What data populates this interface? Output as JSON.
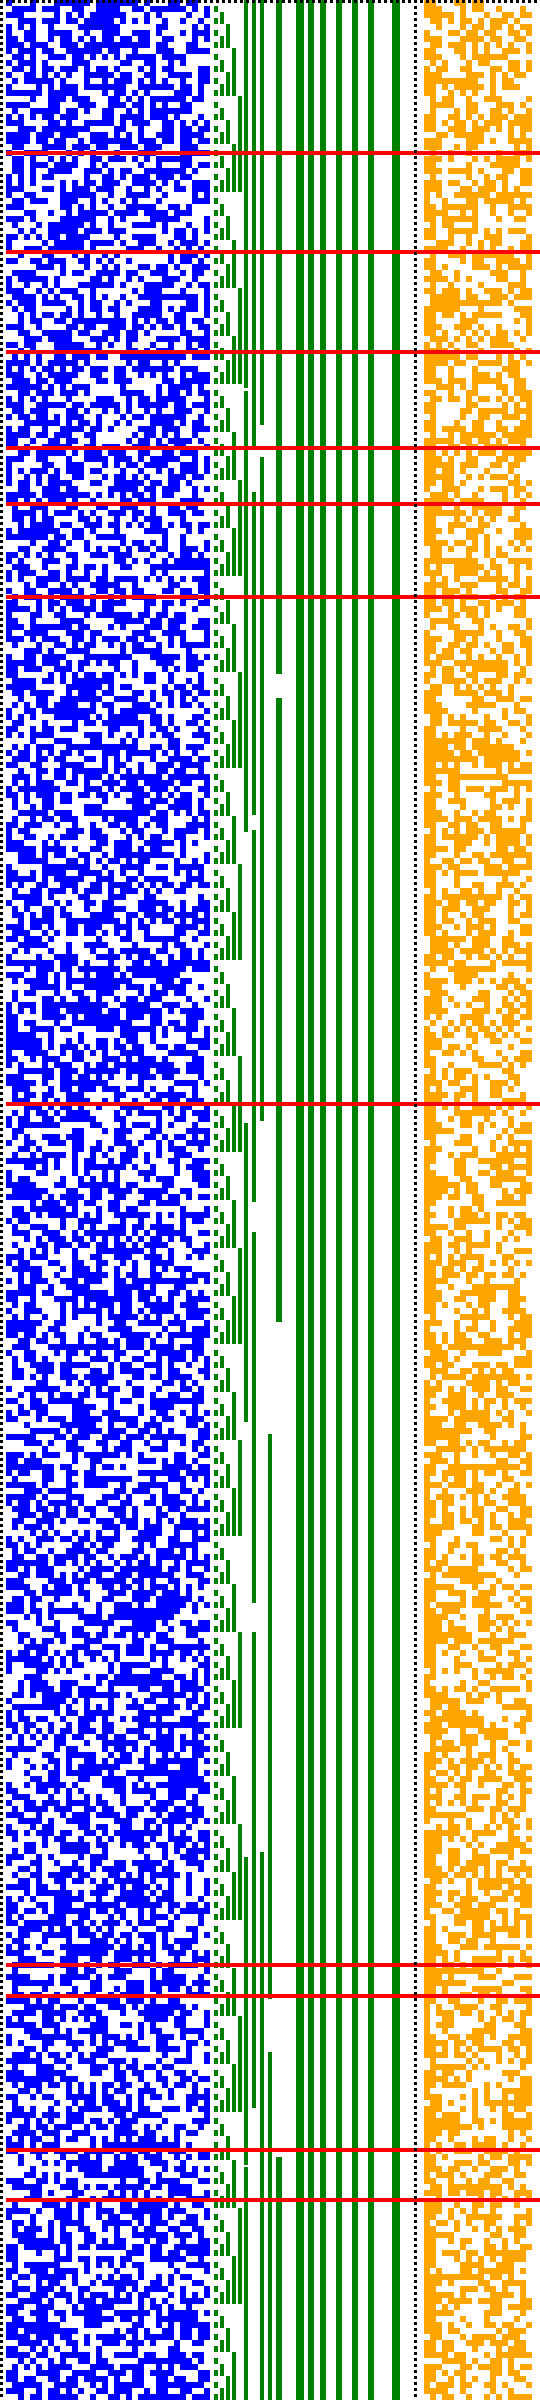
{
  "colors": {
    "background": "#ffffff",
    "left_block": "#0000ff",
    "counter_columns": "#008000",
    "right_block": "#ffa500",
    "separator_rows": "#ff0000",
    "dotted_border": "#000000"
  },
  "left_block": {
    "fill_fraction": 0.55,
    "description_color_name": "blue"
  },
  "counter_columns": {
    "column_count": 12
  },
  "right_block": {
    "fill_fraction": 0.5
  },
  "separator_rows": {
    "rows_relative": [
      0.063,
      0.104,
      0.146,
      0.186,
      0.209,
      0.248,
      0.459,
      0.818,
      0.831,
      0.895,
      0.916
    ]
  }
}
